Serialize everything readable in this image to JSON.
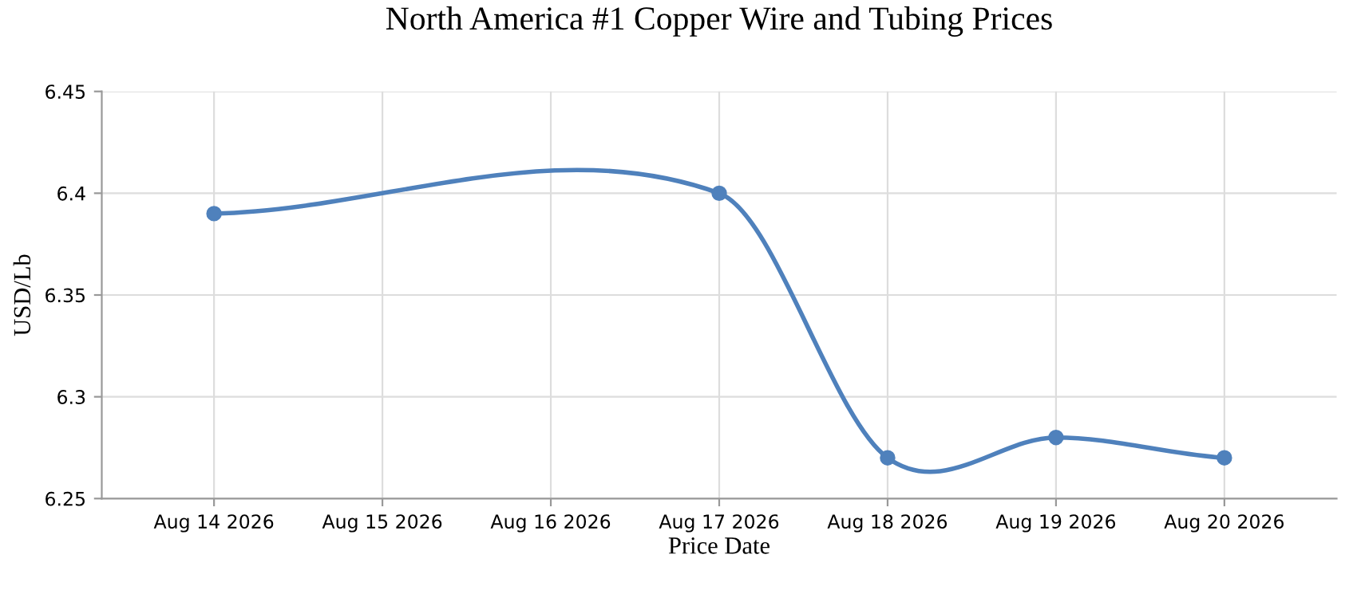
{
  "chart_data": {
    "type": "line",
    "title": "North America #1 Copper Wire and Tubing Prices",
    "xlabel": "Price Date",
    "ylabel": "USD/Lb",
    "x": [
      "2026-08-14",
      "2026-08-17",
      "2026-08-18",
      "2026-08-19",
      "2026-08-20"
    ],
    "series": [
      {
        "color": "#4f81bc",
        "values": [
          6.39,
          6.4,
          6.27,
          6.28,
          6.27
        ]
      }
    ],
    "xlim": [
      "2026-08-13T08:00",
      "2026-08-20T16:00"
    ],
    "xticks": [
      {
        "value": "2026-08-14",
        "label": "Aug 14 2026"
      },
      {
        "value": "2026-08-15",
        "label": "Aug 15 2026"
      },
      {
        "value": "2026-08-16",
        "label": "Aug 16 2026"
      },
      {
        "value": "2026-08-17",
        "label": "Aug 17 2026"
      },
      {
        "value": "2026-08-18",
        "label": "Aug 18 2026"
      },
      {
        "value": "2026-08-19",
        "label": "Aug 19 2026"
      },
      {
        "value": "2026-08-20",
        "label": "Aug 20 2026"
      }
    ],
    "ylim": [
      6.25,
      6.45
    ],
    "yticks": [
      6.25,
      6.3,
      6.35,
      6.4,
      6.45
    ],
    "grid": true,
    "legend": false,
    "marker": "circle",
    "line_style": "solid"
  }
}
